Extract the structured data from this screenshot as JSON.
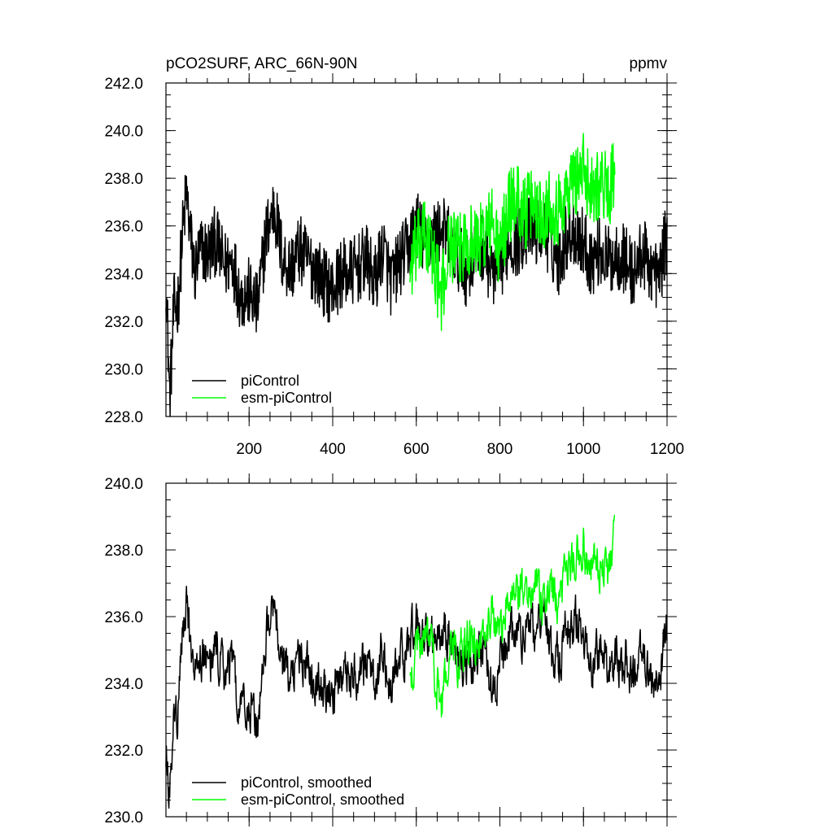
{
  "chart_data": [
    {
      "type": "line",
      "title": "pCO2SURF, ARC_66N-90N",
      "units": "ppmv",
      "xlabel": "",
      "ylabel": "",
      "xlim": [
        1,
        1200
      ],
      "ylim": [
        228,
        242
      ],
      "xticks": [
        200,
        400,
        600,
        800,
        1000,
        1200
      ],
      "xtick_labels": [
        "200",
        "400",
        "600",
        "800",
        "1000",
        "1200"
      ],
      "yticks": [
        228,
        230,
        232,
        234,
        236,
        238,
        240,
        242
      ],
      "ytick_labels": [
        "228.0",
        "230.0",
        "232.0",
        "234.0",
        "236.0",
        "238.0",
        "240.0",
        "242.0"
      ],
      "legend_position": "bottom-left",
      "grid": false,
      "series": [
        {
          "name": "piControl",
          "color": "#000000",
          "x": [
            1,
            10,
            20,
            30,
            40,
            50,
            60,
            70,
            80,
            90,
            100,
            120,
            140,
            160,
            180,
            200,
            220,
            240,
            260,
            280,
            300,
            320,
            340,
            360,
            380,
            400,
            420,
            440,
            460,
            480,
            500,
            520,
            540,
            560,
            580,
            600,
            620,
            640,
            660,
            680,
            700,
            720,
            740,
            760,
            780,
            800,
            820,
            840,
            860,
            880,
            900,
            920,
            940,
            960,
            980,
            1000,
            1020,
            1040,
            1060,
            1080,
            1100,
            1120,
            1140,
            1160,
            1180,
            1200
          ],
          "y": [
            234.0,
            228.7,
            232.5,
            232.8,
            235.5,
            237.4,
            235.5,
            234.0,
            234.8,
            235.0,
            234.8,
            235.4,
            234.3,
            234.6,
            233.0,
            233.2,
            232.5,
            235.6,
            236.8,
            234.6,
            234.2,
            235.0,
            234.5,
            234.2,
            233.6,
            233.3,
            234.0,
            234.0,
            234.2,
            234.6,
            233.6,
            235.1,
            233.6,
            234.5,
            235.0,
            236.2,
            235.2,
            235.6,
            235.8,
            235.4,
            234.6,
            234.1,
            234.8,
            235.2,
            234.0,
            234.2,
            235.4,
            235.3,
            235.8,
            235.7,
            236.0,
            235.3,
            234.5,
            235.6,
            235.8,
            235.3,
            234.5,
            235.0,
            234.5,
            234.8,
            234.6,
            233.9,
            234.9,
            234.3,
            233.8,
            235.6
          ]
        },
        {
          "name": "esm-piControl",
          "color": "#00ff00",
          "x": [
            585,
            600,
            620,
            640,
            660,
            680,
            700,
            720,
            740,
            760,
            780,
            800,
            820,
            840,
            860,
            880,
            900,
            920,
            940,
            960,
            980,
            1000,
            1020,
            1040,
            1060,
            1075
          ],
          "y": [
            234.2,
            235.0,
            235.6,
            234.8,
            232.9,
            235.4,
            234.8,
            235.6,
            235.3,
            235.5,
            236.2,
            234.8,
            236.8,
            237.2,
            236.5,
            237.0,
            236.5,
            237.0,
            236.6,
            237.4,
            238.0,
            238.3,
            237.6,
            237.9,
            237.4,
            238.4
          ]
        }
      ]
    },
    {
      "type": "line",
      "title": "",
      "xlabel": "",
      "ylabel": "",
      "xlim": [
        1,
        1200
      ],
      "ylim": [
        230,
        240
      ],
      "xticks": [
        200,
        400,
        600,
        800,
        1000,
        1200
      ],
      "yticks": [
        230,
        232,
        234,
        236,
        238,
        240
      ],
      "ytick_labels": [
        "230.0",
        "232.0",
        "234.0",
        "236.0",
        "238.0",
        "240.0"
      ],
      "legend_position": "bottom-left",
      "grid": false,
      "series": [
        {
          "name": "piControl, smoothed",
          "color": "#000000",
          "x": [
            1,
            10,
            20,
            30,
            40,
            50,
            60,
            70,
            80,
            90,
            100,
            120,
            140,
            160,
            180,
            200,
            220,
            240,
            260,
            280,
            300,
            320,
            340,
            360,
            380,
            400,
            420,
            440,
            460,
            480,
            500,
            520,
            540,
            560,
            580,
            600,
            620,
            640,
            660,
            680,
            700,
            720,
            740,
            760,
            780,
            800,
            820,
            840,
            860,
            880,
            900,
            920,
            940,
            960,
            980,
            1000,
            1020,
            1040,
            1060,
            1080,
            1100,
            1120,
            1140,
            1160,
            1180,
            1200
          ],
          "y": [
            232.0,
            230.5,
            232.8,
            233.2,
            235.5,
            236.5,
            235.0,
            234.2,
            234.6,
            234.8,
            234.6,
            235.2,
            234.3,
            234.6,
            233.2,
            233.4,
            232.8,
            235.4,
            236.5,
            234.6,
            234.3,
            235.0,
            234.5,
            234.2,
            233.8,
            233.6,
            234.1,
            234.1,
            234.3,
            234.6,
            233.8,
            235.1,
            233.8,
            234.6,
            235.0,
            236.0,
            235.3,
            235.6,
            235.8,
            235.4,
            234.7,
            234.2,
            234.8,
            235.2,
            234.2,
            234.3,
            235.4,
            235.3,
            235.8,
            235.7,
            235.9,
            235.3,
            234.6,
            235.6,
            235.8,
            235.3,
            234.6,
            235.0,
            234.6,
            234.8,
            234.7,
            234.0,
            234.9,
            234.4,
            234.0,
            235.6
          ]
        },
        {
          "name": "esm-piControl, smoothed",
          "color": "#00ff00",
          "x": [
            585,
            600,
            620,
            640,
            660,
            680,
            700,
            720,
            740,
            760,
            780,
            800,
            820,
            840,
            860,
            880,
            900,
            920,
            940,
            960,
            980,
            1000,
            1020,
            1040,
            1060,
            1075
          ],
          "y": [
            234.4,
            235.0,
            235.5,
            234.8,
            233.2,
            235.3,
            234.8,
            235.5,
            235.3,
            235.5,
            236.2,
            234.9,
            236.7,
            237.0,
            236.5,
            236.9,
            236.4,
            236.9,
            236.5,
            237.3,
            237.8,
            238.1,
            237.5,
            237.7,
            237.3,
            238.4
          ]
        }
      ]
    }
  ]
}
